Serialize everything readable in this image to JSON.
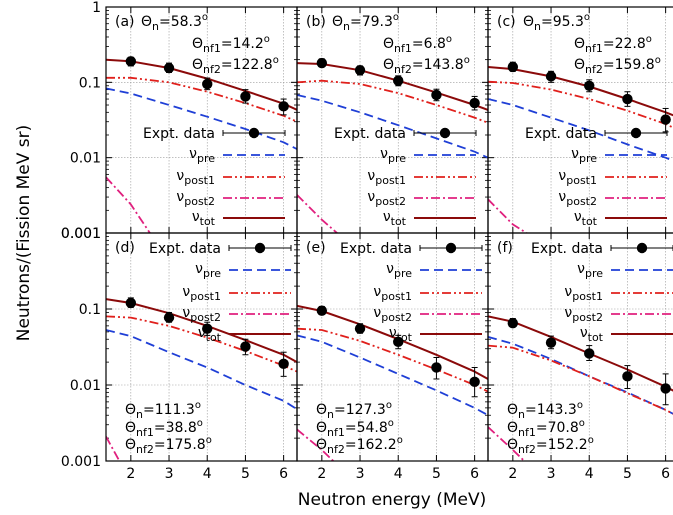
{
  "figure": {
    "xlabel": "Neutron energy (MeV)",
    "ylabel": "Neutrons/(Fission MeV sr)"
  },
  "legend_labels": {
    "expt": "Expt. data",
    "pre": "νpre",
    "post1": "νpost1",
    "post2": "νpost2",
    "tot": "νtot"
  },
  "styles": {
    "expt": "#000000",
    "pre": "#1f3fd6",
    "post1": "#e0201c",
    "post2": "#e0207e",
    "tot": "#8b0a0a",
    "grid": "#9a9a9a"
  },
  "chart_data": [
    {
      "type": "line",
      "panel": "(a)",
      "angles": [
        "Θn=58.3°",
        "Θnf1=14.2°",
        "Θnf2=122.8°"
      ],
      "xlim": [
        1.35,
        6.35
      ],
      "ylim": [
        0.001,
        1
      ],
      "yscale": "log",
      "grid": true,
      "x_ticks": [
        2,
        3,
        4,
        5,
        6
      ],
      "y_ticks": [
        "1",
        "0.1",
        "0.01",
        "0.001"
      ],
      "experiment": {
        "name": "Expt. data",
        "x": [
          2,
          3,
          4,
          5,
          6
        ],
        "y": [
          0.19,
          0.155,
          0.095,
          0.065,
          0.048
        ],
        "err_low": [
          0.165,
          0.135,
          0.08,
          0.053,
          0.037
        ],
        "err_high": [
          0.215,
          0.18,
          0.114,
          0.08,
          0.06
        ]
      },
      "series": [
        {
          "name": "νpre",
          "x": [
            1.35,
            2,
            3,
            4,
            5,
            6,
            6.35
          ],
          "y": [
            0.083,
            0.071,
            0.05,
            0.035,
            0.024,
            0.016,
            0.013
          ]
        },
        {
          "name": "νpost1",
          "x": [
            1.35,
            2,
            3,
            4,
            5,
            6,
            6.35
          ],
          "y": [
            0.115,
            0.115,
            0.1,
            0.075,
            0.053,
            0.036,
            0.03
          ]
        },
        {
          "name": "νpost2",
          "x": [
            1.35,
            2,
            2.5
          ],
          "y": [
            0.0055,
            0.0024,
            0.001
          ]
        },
        {
          "name": "νtot",
          "x": [
            1.35,
            2,
            3,
            4,
            5,
            6,
            6.35
          ],
          "y": [
            0.2,
            0.19,
            0.155,
            0.112,
            0.077,
            0.052,
            0.043
          ]
        }
      ]
    },
    {
      "type": "line",
      "panel": "(b)",
      "angles": [
        "Θn=79.3°",
        "Θnf1=6.8°",
        "Θnf2=143.8°"
      ],
      "xlim": [
        1.35,
        6.35
      ],
      "ylim": [
        0.001,
        1
      ],
      "yscale": "log",
      "grid": true,
      "x_ticks": [
        2,
        3,
        4,
        5,
        6
      ],
      "y_ticks": [],
      "experiment": {
        "name": "Expt. data",
        "x": [
          2,
          3,
          4,
          5,
          6
        ],
        "y": [
          0.18,
          0.145,
          0.105,
          0.068,
          0.053
        ],
        "err_low": [
          0.16,
          0.125,
          0.09,
          0.057,
          0.043
        ],
        "err_high": [
          0.205,
          0.165,
          0.122,
          0.081,
          0.065
        ]
      },
      "series": [
        {
          "name": "νpre",
          "x": [
            1.35,
            2,
            3,
            4,
            5,
            6,
            6.35
          ],
          "y": [
            0.068,
            0.057,
            0.04,
            0.027,
            0.018,
            0.012,
            0.01
          ]
        },
        {
          "name": "νpost1",
          "x": [
            1.35,
            2,
            3,
            4,
            5,
            6,
            6.35
          ],
          "y": [
            0.1,
            0.105,
            0.095,
            0.072,
            0.05,
            0.034,
            0.029
          ]
        },
        {
          "name": "νpost2",
          "x": [
            1.35,
            2,
            2.5
          ],
          "y": [
            0.0032,
            0.0015,
            0.0009
          ]
        },
        {
          "name": "νtot",
          "x": [
            1.35,
            2,
            3,
            4,
            5,
            6,
            6.35
          ],
          "y": [
            0.18,
            0.175,
            0.145,
            0.105,
            0.073,
            0.05,
            0.043
          ]
        }
      ]
    },
    {
      "type": "line",
      "panel": "(c)",
      "angles": [
        "Θn=95.3°",
        "Θnf1=22.8°",
        "Θnf2=159.8°"
      ],
      "xlim": [
        1.35,
        6.35
      ],
      "ylim": [
        0.001,
        1
      ],
      "yscale": "log",
      "grid": true,
      "x_ticks": [
        2,
        3,
        4,
        5,
        6
      ],
      "y_ticks": [],
      "experiment": {
        "name": "Expt. data",
        "x": [
          2,
          3,
          4,
          5,
          6
        ],
        "y": [
          0.16,
          0.12,
          0.09,
          0.06,
          0.032
        ],
        "err_low": [
          0.14,
          0.1,
          0.075,
          0.048,
          0.022
        ],
        "err_high": [
          0.185,
          0.14,
          0.108,
          0.075,
          0.045
        ]
      },
      "series": [
        {
          "name": "νpre",
          "x": [
            1.35,
            2,
            3,
            4,
            5,
            6,
            6.35
          ],
          "y": [
            0.06,
            0.05,
            0.034,
            0.023,
            0.015,
            0.01,
            0.0085
          ]
        },
        {
          "name": "νpost1",
          "x": [
            1.35,
            2,
            3,
            4,
            5,
            6,
            6.35
          ],
          "y": [
            0.102,
            0.098,
            0.08,
            0.06,
            0.042,
            0.028,
            0.023
          ]
        },
        {
          "name": "νpost2",
          "x": [
            1.35,
            2,
            2.5
          ],
          "y": [
            0.0028,
            0.0013,
            0.0009
          ]
        },
        {
          "name": "νtot",
          "x": [
            1.35,
            2,
            3,
            4,
            5,
            6,
            6.35
          ],
          "y": [
            0.16,
            0.15,
            0.12,
            0.088,
            0.06,
            0.04,
            0.034
          ]
        }
      ]
    },
    {
      "type": "line",
      "panel": "(d)",
      "angles": [
        "Θn=111.3°",
        "Θnf1=38.8°",
        "Θnf2=175.8°"
      ],
      "xlim": [
        1.35,
        6.35
      ],
      "ylim": [
        0.001,
        1
      ],
      "yscale": "log",
      "grid": true,
      "x_ticks": [
        2,
        3,
        4,
        5,
        6
      ],
      "y_ticks": [
        "1",
        "0.1",
        "0.01",
        "0.001"
      ],
      "experiment": {
        "name": "Expt. data",
        "x": [
          2,
          3,
          4,
          5,
          6
        ],
        "y": [
          0.12,
          0.077,
          0.055,
          0.032,
          0.019
        ],
        "err_low": [
          0.105,
          0.067,
          0.045,
          0.025,
          0.013
        ],
        "err_high": [
          0.14,
          0.09,
          0.067,
          0.04,
          0.027
        ]
      },
      "series": [
        {
          "name": "νpre",
          "x": [
            1.35,
            2,
            3,
            4,
            5,
            6,
            6.35
          ],
          "y": [
            0.053,
            0.044,
            0.027,
            0.017,
            0.01,
            0.0062,
            0.0048
          ]
        },
        {
          "name": "νpost1",
          "x": [
            1.35,
            2,
            3,
            4,
            5,
            6,
            6.35
          ],
          "y": [
            0.08,
            0.077,
            0.06,
            0.042,
            0.028,
            0.018,
            0.015
          ]
        },
        {
          "name": "νpost2",
          "x": [
            1.35,
            1.7
          ],
          "y": [
            0.0021,
            0.001
          ]
        },
        {
          "name": "νtot",
          "x": [
            1.35,
            2,
            3,
            4,
            5,
            6,
            6.35
          ],
          "y": [
            0.135,
            0.12,
            0.088,
            0.06,
            0.039,
            0.025,
            0.02
          ]
        }
      ]
    },
    {
      "type": "line",
      "panel": "(e)",
      "angles": [
        "Θn=127.3°",
        "Θnf1=54.8°",
        "Θnf2=162.2°"
      ],
      "xlim": [
        1.35,
        6.35
      ],
      "ylim": [
        0.001,
        1
      ],
      "yscale": "log",
      "grid": true,
      "x_ticks": [
        2,
        3,
        4,
        5,
        6
      ],
      "y_ticks": [],
      "experiment": {
        "name": "Expt. data",
        "x": [
          2,
          3,
          4,
          5,
          6
        ],
        "y": [
          0.095,
          0.055,
          0.037,
          0.017,
          0.011
        ],
        "err_low": [
          0.085,
          0.048,
          0.03,
          0.012,
          0.007
        ],
        "err_high": [
          0.108,
          0.064,
          0.045,
          0.023,
          0.017
        ]
      },
      "series": [
        {
          "name": "νpre",
          "x": [
            1.35,
            2,
            3,
            4,
            5,
            6,
            6.35
          ],
          "y": [
            0.045,
            0.037,
            0.023,
            0.014,
            0.0085,
            0.005,
            0.004
          ]
        },
        {
          "name": "νpost1",
          "x": [
            1.35,
            2,
            3,
            4,
            5,
            6,
            6.35
          ],
          "y": [
            0.055,
            0.053,
            0.038,
            0.025,
            0.016,
            0.01,
            0.0082
          ]
        },
        {
          "name": "νpost2",
          "x": [
            1.35,
            2,
            2.3
          ],
          "y": [
            0.0026,
            0.0014,
            0.001
          ]
        },
        {
          "name": "νtot",
          "x": [
            1.35,
            2,
            3,
            4,
            5,
            6,
            6.35
          ],
          "y": [
            0.11,
            0.094,
            0.063,
            0.04,
            0.025,
            0.015,
            0.012
          ]
        }
      ]
    },
    {
      "type": "line",
      "panel": "(f)",
      "angles": [
        "Θn=143.3°",
        "Θnf1=70.8°",
        "Θnf2=152.2°"
      ],
      "xlim": [
        1.35,
        6.35
      ],
      "ylim": [
        0.001,
        1
      ],
      "yscale": "log",
      "grid": true,
      "x_ticks": [
        2,
        3,
        4,
        5,
        6
      ],
      "y_ticks": [],
      "experiment": {
        "name": "Expt. data",
        "x": [
          2,
          3,
          4,
          5,
          6
        ],
        "y": [
          0.065,
          0.036,
          0.026,
          0.013,
          0.009
        ],
        "err_low": [
          0.058,
          0.03,
          0.021,
          0.009,
          0.0055
        ],
        "err_high": [
          0.075,
          0.044,
          0.033,
          0.018,
          0.014
        ]
      },
      "series": [
        {
          "name": "νpre",
          "x": [
            1.35,
            2,
            3,
            4,
            5,
            6,
            6.35
          ],
          "y": [
            0.043,
            0.035,
            0.022,
            0.013,
            0.008,
            0.0047,
            0.0038
          ]
        },
        {
          "name": "νpost1",
          "x": [
            1.35,
            2,
            3,
            4,
            5,
            6,
            6.35
          ],
          "y": [
            0.033,
            0.031,
            0.021,
            0.013,
            0.0078,
            0.0047,
            0.0038
          ]
        },
        {
          "name": "νpost2",
          "x": [
            1.35,
            2,
            2.3
          ],
          "y": [
            0.0028,
            0.0014,
            0.001
          ]
        },
        {
          "name": "νtot",
          "x": [
            1.35,
            2,
            3,
            4,
            5,
            6,
            6.35
          ],
          "y": [
            0.08,
            0.068,
            0.043,
            0.026,
            0.016,
            0.0095,
            0.0077
          ]
        }
      ]
    }
  ]
}
